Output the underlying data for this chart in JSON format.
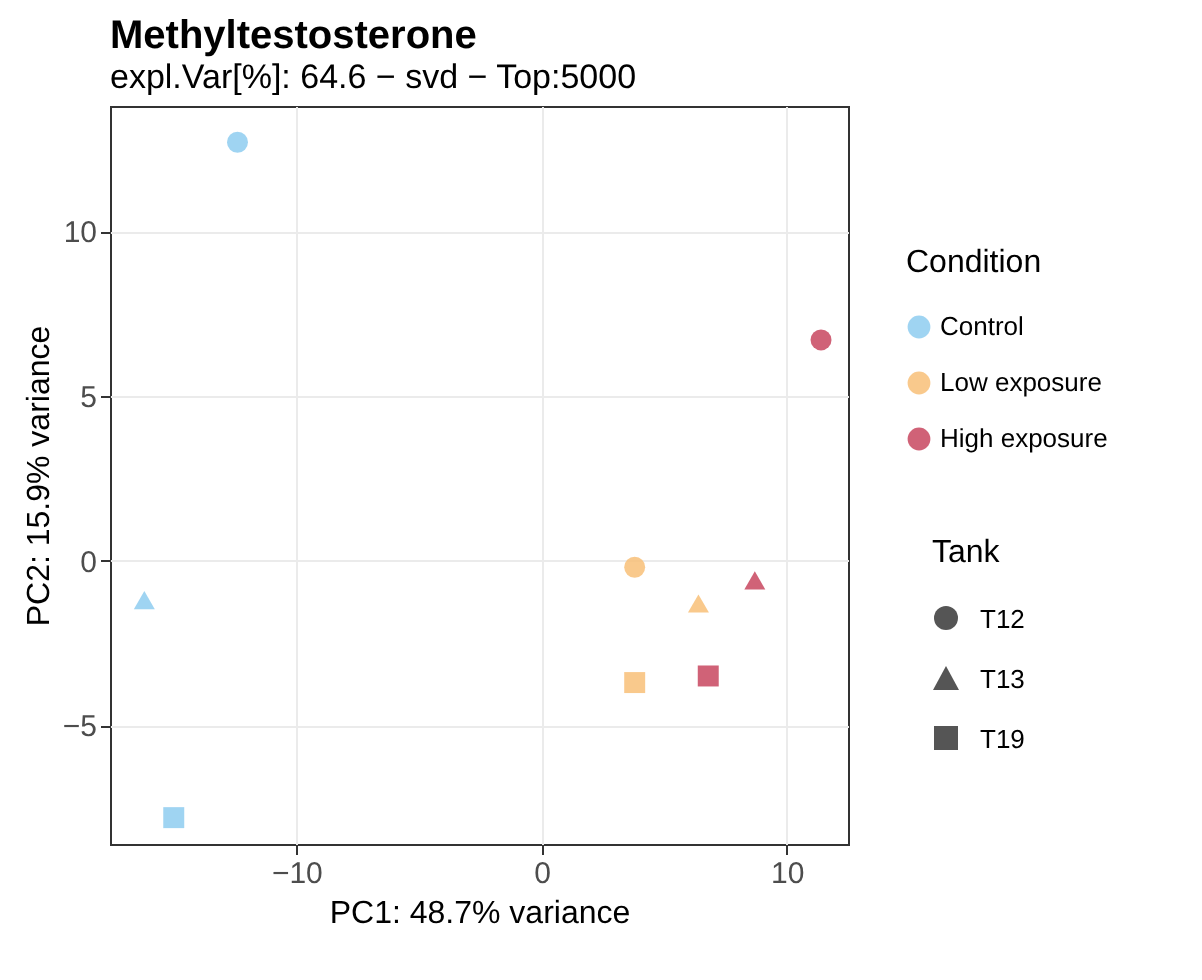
{
  "chart_data": {
    "type": "scatter",
    "title": "Methyltestosterone",
    "subtitle": "expl.Var[%]: 64.6 − svd − Top:5000",
    "xlabel": "PC1: 48.7% variance",
    "ylabel": "PC2: 15.9% variance",
    "xlim": [
      -17.6,
      12.5
    ],
    "ylim": [
      -8.6,
      13.8
    ],
    "xticks": [
      -10,
      0,
      10
    ],
    "yticks": [
      -5,
      0,
      5,
      10
    ],
    "grid": true,
    "legend": "right",
    "legend_title": "Condition",
    "annotations": [
      "Tank",
      "T12",
      "T13",
      "T19"
    ],
    "series": [
      {
        "name": "Control",
        "color": "#8ecdf0",
        "marker": "circle",
        "x": [
          -12.4
        ],
        "values": [
          12.7
        ]
      },
      {
        "color": "#8ecdf0",
        "marker": "triangle",
        "x": [
          -16.2
        ],
        "values": [
          -1.2
        ]
      },
      {
        "color": "#8ecdf0",
        "marker": "square",
        "x": [
          -15.0
        ],
        "values": [
          -7.8
        ]
      },
      {
        "name": "Low exposure",
        "color": "#f8bf78",
        "marker": "circle",
        "x": [
          3.8
        ],
        "values": [
          -0.2
        ]
      },
      {
        "color": "#f8bf78",
        "marker": "triangle",
        "x": [
          6.4
        ],
        "values": [
          -1.3
        ]
      },
      {
        "color": "#f8bf78",
        "marker": "square",
        "x": [
          3.8
        ],
        "values": [
          -3.7
        ]
      },
      {
        "name": "High exposure",
        "color": "#c8475f",
        "marker": "circle",
        "x": [
          11.4
        ],
        "values": [
          6.7
        ]
      },
      {
        "color": "#c8475f",
        "marker": "triangle",
        "x": [
          8.7
        ],
        "values": [
          -0.6
        ]
      },
      {
        "color": "#c8475f",
        "marker": "square",
        "x": [
          6.8
        ],
        "values": [
          -3.5
        ]
      }
    ]
  }
}
